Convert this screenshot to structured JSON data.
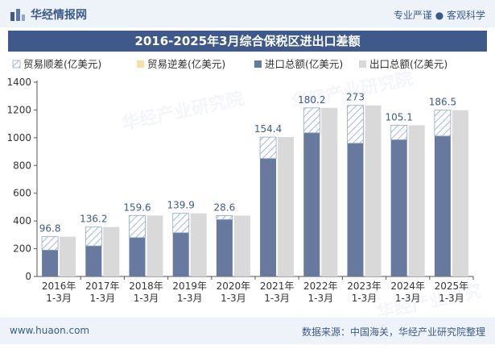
{
  "header": {
    "brand": "华经情报网",
    "tagline": "专业严谨 ● 客观科学"
  },
  "footer": {
    "url": "www.huaon.com",
    "source": "数据来源：中国海关，华经产业研究院整理"
  },
  "watermark": "华经产业研究院",
  "colors": {
    "import": "#68799f",
    "export": "#d9d9d9",
    "surplus_hatch": "#8fa7c4",
    "deficit": "#f2e2a8",
    "header": "#3f5a8a"
  },
  "chart_data": {
    "type": "bar",
    "title": "2016-2025年3月综合保税区进出口差额",
    "categories": [
      "2016年\n1-3月",
      "2017年\n1-3月",
      "2018年\n1-3月",
      "2019年\n1-3月",
      "2020年\n1-3月",
      "2021年\n1-3月",
      "2022年\n1-3月",
      "2023年\n1-3月",
      "2024年\n1-3月",
      "2025年\n1-3月"
    ],
    "series": [
      {
        "name": "贸易顺差(亿美元)",
        "values": [
          96.8,
          136.2,
          159.6,
          139.9,
          28.6,
          154.4,
          180.2,
          273,
          105.1,
          186.5
        ]
      },
      {
        "name": "贸易逆差(亿美元)",
        "values": [
          0,
          0,
          0,
          0,
          0,
          0,
          0,
          0,
          0,
          0
        ]
      },
      {
        "name": "进口总额(亿美元)",
        "values": [
          190,
          220,
          280,
          315,
          410,
          850,
          1035,
          960,
          985,
          1012
        ]
      },
      {
        "name": "出口总额(亿美元)",
        "values": [
          286.8,
          356.2,
          439.6,
          454.9,
          438.6,
          1004.4,
          1215.2,
          1233,
          1090.1,
          1198.5
        ]
      }
    ],
    "data_labels": [
      "96.8",
      "136.2",
      "159.6",
      "139.9",
      "28.6",
      "154.4",
      "180.2",
      "273",
      "105.1",
      "186.5"
    ],
    "y_ticks": [
      0,
      200,
      400,
      600,
      800,
      1000,
      1200,
      1400
    ],
    "ylim": [
      0,
      1400
    ],
    "legend_position": "top",
    "grid": false
  }
}
